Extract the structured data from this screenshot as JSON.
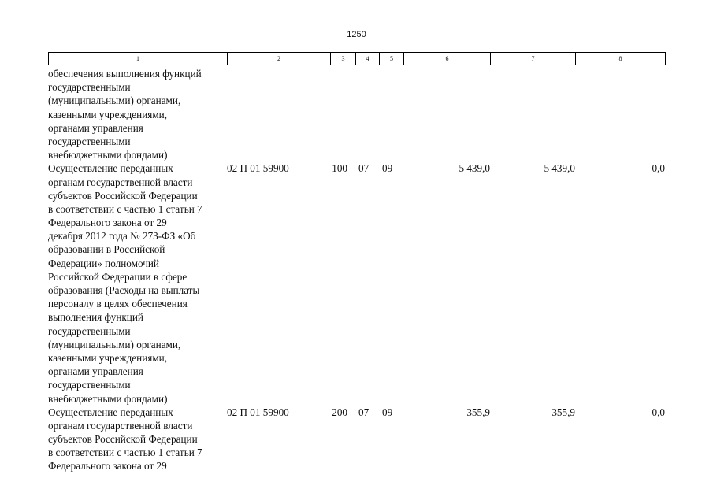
{
  "page_number": "1250",
  "column_numbers": [
    "1",
    "2",
    "3",
    "4",
    "5",
    "6",
    "7",
    "8"
  ],
  "continuation_lines": [
    "обеспечения выполнения функций",
    "государственными",
    "(муниципальными) органами,",
    "казенными учреждениями,",
    "органами управления",
    "государственными",
    "внебюджетными фондами)"
  ],
  "rows": [
    {
      "lines": [
        "Осуществление переданных",
        "органам государственной власти",
        "субъектов Российской Федерации",
        "в соответствии с частью 1 статьи 7",
        "Федерального закона от 29",
        "декабря 2012 года № 273-ФЗ «Об",
        "образовании в Российской",
        "Федерации» полномочий",
        "Российской Федерации в сфере",
        "образования (Расходы на выплаты",
        "персоналу в целях обеспечения",
        "выполнения функций",
        "государственными",
        "(муниципальными) органами,",
        "казенными учреждениями,",
        "органами управления",
        "государственными",
        "внебюджетными фондами)"
      ],
      "csr": "02 П 01 59900",
      "vr": "100",
      "rz": "07",
      "pr": "09",
      "sum6": "5 439,0",
      "sum7": "5 439,0",
      "sum8": "0,0"
    },
    {
      "lines": [
        "Осуществление переданных",
        "органам государственной власти",
        "субъектов Российской Федерации",
        "в соответствии с частью 1 статьи 7",
        "Федерального закона от 29"
      ],
      "csr": "02 П 01 59900",
      "vr": "200",
      "rz": "07",
      "pr": "09",
      "sum6": "355,9",
      "sum7": "355,9",
      "sum8": "0,0"
    }
  ]
}
